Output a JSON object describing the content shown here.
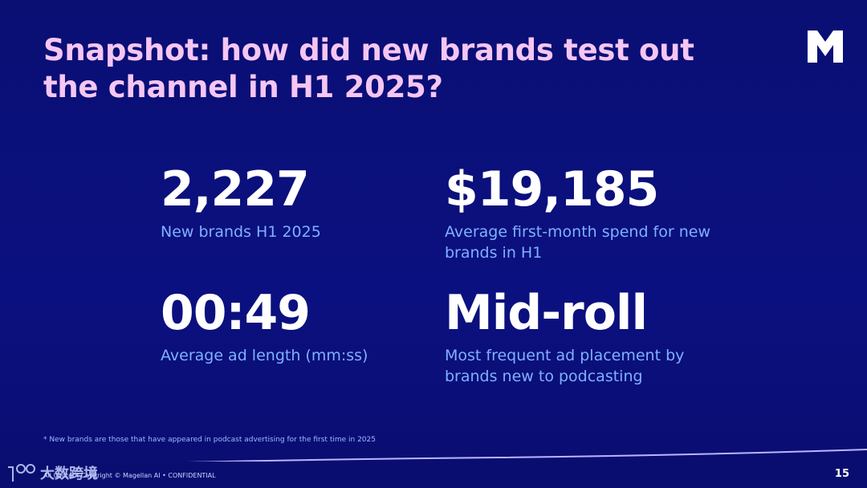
{
  "slide": {
    "title": "Snapshot: how did new brands test out the channel in H1 2025?",
    "page_number": "15",
    "footnote": "* New brands are those that have appeared in podcast advertising for the first time in 2025",
    "copyright": "All Content Copyright © Magellan AI • CONFIDENTIAL",
    "watermark_text": "大数跨境"
  },
  "stats": [
    {
      "value": "2,227",
      "label": "New brands H1 2025"
    },
    {
      "value": "$19,185",
      "label": "Average first-month spend for new brands in H1"
    },
    {
      "value": "00:49",
      "label": "Average ad length (mm:ss)"
    },
    {
      "value": "Mid-roll",
      "label": "Most frequent ad placement by brands new to podcasting"
    }
  ],
  "colors": {
    "background": "#0b0f7a",
    "title": "#f5c6f2",
    "stat_value": "#ffffff",
    "stat_label": "#7fb0ff"
  },
  "icons": {
    "logo": "magellan-m-logo",
    "watermark": "watermark-logo"
  }
}
